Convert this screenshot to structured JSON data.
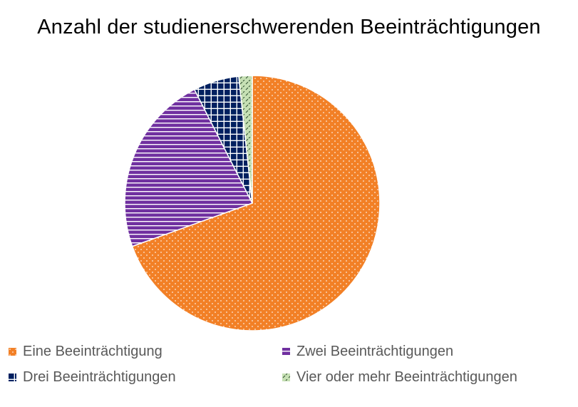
{
  "chart_data": {
    "type": "pie",
    "title": "Anzahl der studienerschwerenden Beeinträchtigungen",
    "categories": [
      "Eine Beeinträchtigung",
      "Zwei Beeinträchtigungen",
      "Drei Beeinträchtigungen",
      "Vier oder mehr Beeinträchtigungen"
    ],
    "values": [
      69.5,
      23.0,
      5.8,
      1.7
    ],
    "colors": [
      "#F28026",
      "#7030A0",
      "#002060",
      "#C6E0B4"
    ],
    "patterns": [
      "dots",
      "horizontal-lines",
      "grid",
      "diagonal-dashes"
    ],
    "legend_position": "bottom"
  }
}
